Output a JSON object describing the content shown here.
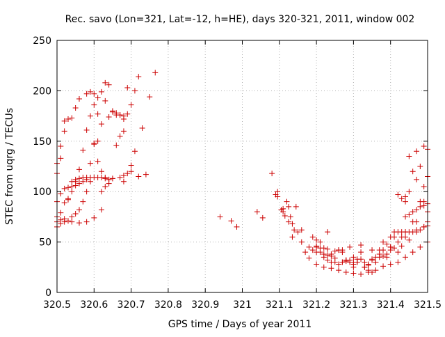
{
  "chart_data": {
    "type": "scatter",
    "title": "Rec. savo (Lon=321, Lat=-12, h=HE), days 320-321, 2011, window 002",
    "xlabel": "GPS time / Days of year 2011",
    "ylabel": "STEC from uqrg / TECUs",
    "xlim": [
      320.5,
      321.5
    ],
    "ylim": [
      0,
      250
    ],
    "xticks": [
      320.5,
      320.6,
      320.7,
      320.8,
      320.9,
      321.0,
      321.1,
      321.2,
      321.3,
      321.4,
      321.5
    ],
    "xtick_labels": [
      "320.5",
      "320.6",
      "320.7",
      "320.8",
      "320.9",
      "321",
      "321.1",
      "321.2",
      "321.3",
      "321.4",
      "321.5"
    ],
    "yticks": [
      0,
      50,
      100,
      150,
      200,
      250
    ],
    "ytick_labels": [
      "0",
      "50",
      "100",
      "150",
      "200",
      "250"
    ],
    "grid": true,
    "marker": "+",
    "color": "#cc0000",
    "series": [
      {
        "x": [
          320.5,
          320.51,
          320.52,
          320.53,
          320.54,
          320.55,
          320.56,
          320.58,
          320.59,
          320.6,
          320.61,
          320.62,
          320.63,
          320.64,
          320.65,
          320.66,
          320.67,
          320.68,
          320.69,
          320.7,
          320.71,
          320.72,
          320.73,
          320.75,
          320.765,
          320.5,
          320.51,
          320.52,
          320.53,
          320.54,
          320.55,
          320.56,
          320.57,
          320.58,
          320.59,
          320.6,
          320.61,
          320.62,
          320.63,
          320.64,
          320.65,
          320.66,
          320.67,
          320.68,
          320.69,
          320.7,
          320.5,
          320.51,
          320.52,
          320.53,
          320.54,
          320.55,
          320.56,
          320.57,
          320.58,
          320.59,
          320.6,
          320.61,
          320.62,
          320.63,
          320.64,
          320.65,
          320.67,
          320.68,
          320.69,
          320.7,
          320.71,
          320.5,
          320.51,
          320.52,
          320.53,
          320.54,
          320.55,
          320.56,
          320.57,
          320.58,
          320.59,
          320.6,
          320.61,
          320.62,
          320.63,
          320.64,
          320.65,
          320.66,
          320.67,
          320.68,
          320.5,
          320.51,
          320.52,
          320.53,
          320.54,
          320.55,
          320.56,
          320.57,
          320.58,
          320.59,
          320.6,
          320.61,
          320.62,
          320.63,
          320.64,
          320.68,
          320.72,
          320.74,
          320.5,
          320.51,
          320.52,
          320.54,
          320.56,
          320.58,
          320.6,
          320.62,
          320.94,
          320.97,
          320.985,
          321.04,
          321.055,
          321.08,
          321.095,
          321.095,
          321.105,
          321.11,
          321.115,
          321.12,
          321.125,
          321.13,
          321.135,
          321.14,
          321.145,
          321.09,
          321.11,
          321.125,
          321.135,
          321.15,
          321.16,
          321.17,
          321.18,
          321.19,
          321.2,
          321.21,
          321.22,
          321.23,
          321.24,
          321.25,
          321.26,
          321.27,
          321.28,
          321.29,
          321.3,
          321.31,
          321.32,
          321.33,
          321.34,
          321.35,
          321.36,
          321.37,
          321.38,
          321.39,
          321.4,
          321.41,
          321.42,
          321.43,
          321.44,
          321.45,
          321.46,
          321.47,
          321.48,
          321.49,
          321.5,
          321.2,
          321.21,
          321.22,
          321.23,
          321.24,
          321.25,
          321.26,
          321.27,
          321.28,
          321.29,
          321.3,
          321.31,
          321.32,
          321.33,
          321.34,
          321.35,
          321.36,
          321.37,
          321.38,
          321.39,
          321.4,
          321.41,
          321.42,
          321.43,
          321.44,
          321.45,
          321.46,
          321.47,
          321.48,
          321.49,
          321.5,
          321.2,
          321.22,
          321.24,
          321.26,
          321.28,
          321.3,
          321.32,
          321.34,
          321.36,
          321.38,
          321.4,
          321.42,
          321.44,
          321.46,
          321.48,
          321.5,
          321.2,
          321.23,
          321.26,
          321.29,
          321.32,
          321.35,
          321.38,
          321.41,
          321.44,
          321.47,
          321.5,
          321.21,
          321.24,
          321.27,
          321.3,
          321.33,
          321.36,
          321.39,
          321.42,
          321.45,
          321.48,
          321.5,
          321.18,
          321.2,
          321.22,
          321.25,
          321.28,
          321.31,
          321.34,
          321.37,
          321.4,
          321.43,
          321.46,
          321.49,
          321.16,
          321.19,
          321.23,
          321.27,
          321.3,
          321.35,
          321.4,
          321.44,
          321.47,
          321.49,
          321.45,
          321.47,
          321.44,
          321.49,
          321.46,
          321.5,
          321.43,
          321.48,
          321.42,
          321.45,
          321.47,
          321.49,
          321.5,
          321.44
        ],
        "y": [
          128,
          145,
          160,
          172,
          173,
          183,
          192,
          197,
          199,
          197,
          193,
          199,
          208,
          206,
          180,
          176,
          176,
          175,
          203,
          186,
          200,
          214,
          163,
          194,
          218,
          118,
          133,
          170,
          92,
          105,
          110,
          122,
          141,
          161,
          175,
          186,
          177,
          167,
          190,
          174,
          179,
          178,
          176,
          172,
          177,
          126,
          90,
          98,
          103,
          104,
          110,
          112,
          113,
          114,
          114,
          114,
          114,
          114,
          114,
          113,
          112,
          113,
          114,
          116,
          118,
          120,
          140,
          75,
          79,
          89,
          93,
          100,
          106,
          108,
          110,
          112,
          128,
          147,
          130,
          120,
          114,
          112,
          113,
          146,
          155,
          160,
          65,
          68,
          70,
          71,
          75,
          78,
          82,
          90,
          100,
          110,
          148,
          150,
          100,
          105,
          108,
          110,
          115,
          117,
          70,
          72,
          73,
          70,
          69,
          70,
          74,
          82,
          75,
          71,
          65,
          80,
          74,
          118,
          100,
          95,
          82,
          80,
          76,
          90,
          85,
          75,
          68,
          62,
          85,
          97,
          83,
          70,
          55,
          60,
          50,
          40,
          34,
          42,
          45,
          40,
          44,
          37,
          38,
          41,
          42,
          42,
          32,
          32,
          30,
          33,
          40,
          25,
          22,
          20,
          30,
          38,
          36,
          38,
          42,
          44,
          50,
          46,
          60,
          52,
          60,
          62,
          62,
          65,
          66,
          46,
          50,
          35,
          32,
          30,
          30,
          28,
          30,
          31,
          30,
          25,
          30,
          33,
          30,
          27,
          32,
          35,
          42,
          42,
          48,
          55,
          60,
          60,
          60,
          75,
          77,
          80,
          82,
          85,
          86,
          88,
          28,
          25,
          24,
          22,
          20,
          19,
          18,
          20,
          22,
          26,
          28,
          30,
          35,
          40,
          45,
          50,
          52,
          60,
          42,
          45,
          47,
          42,
          50,
          55,
          60,
          70,
          70,
          44,
          36,
          30,
          28,
          25,
          30,
          35,
          40,
          60,
          90,
          80,
          45,
          40,
          38,
          34,
          32,
          30,
          28,
          35,
          45,
          55,
          70,
          90,
          62,
          55,
          43,
          40,
          35,
          33,
          45,
          55,
          60,
          65,
          100,
          112,
          95,
          105,
          120,
          115,
          93,
          125,
          97,
          135,
          140,
          145,
          142,
          90
        ]
      }
    ]
  }
}
